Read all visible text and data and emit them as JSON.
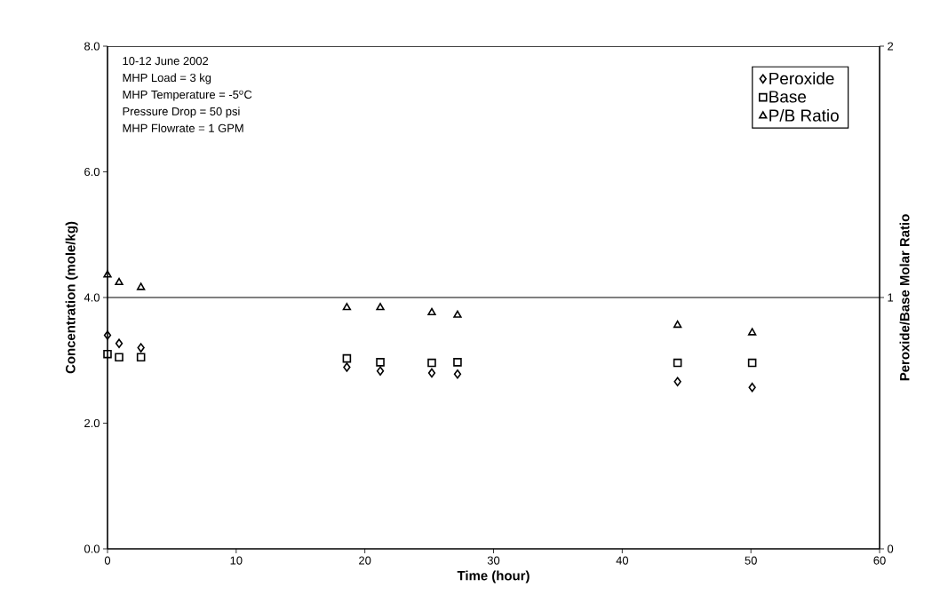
{
  "chart_data": {
    "type": "scatter",
    "xlabel": "Time (hour)",
    "ylabel": "Concentration (mole/kg)",
    "y2label": "Peroxide/Base Molar Ratio",
    "xlim": [
      0,
      60
    ],
    "xticks": [
      0,
      10,
      20,
      30,
      40,
      50,
      60
    ],
    "ylim": [
      0,
      8
    ],
    "yticks": [
      {
        "value": 0,
        "label": "0.0"
      },
      {
        "value": 2,
        "label": "2.0"
      },
      {
        "value": 4,
        "label": "4.0"
      },
      {
        "value": 6,
        "label": "6.0"
      },
      {
        "value": 8,
        "label": "8.0"
      }
    ],
    "y2lim": [
      0,
      2
    ],
    "y2ticks": [
      0,
      1,
      2
    ],
    "x": [
      0,
      0.9,
      2.6,
      18.6,
      21.2,
      25.2,
      27.2,
      44.3,
      50.1
    ],
    "series": [
      {
        "name": "Peroxide",
        "color": "#000000",
        "marker": "diamond",
        "values": [
          3.4,
          3.27,
          3.2,
          2.89,
          2.83,
          2.8,
          2.78,
          2.66,
          2.57
        ]
      },
      {
        "name": "Base",
        "color": "#000000",
        "marker": "square",
        "values": [
          3.1,
          3.05,
          3.05,
          3.03,
          2.97,
          2.96,
          2.97,
          2.96,
          2.96
        ]
      },
      {
        "name": "P/B Ratio",
        "color": "#000000",
        "marker": "triangle",
        "axis": "y2",
        "values": [
          1.09,
          1.06,
          1.04,
          0.96,
          0.96,
          0.94,
          0.93,
          0.89,
          0.86
        ]
      }
    ],
    "ref_lines": [
      {
        "axis": "y2",
        "value": 1,
        "color": "#000000"
      }
    ],
    "legend": "top right",
    "annotations": [
      "10-12 June 2002",
      "MHP Load = 3 kg",
      "MHP Temperature = -5$^{o}$C",
      "Pressure Drop = 50 psi",
      "MHP Flowrate = 1 GPM"
    ]
  }
}
